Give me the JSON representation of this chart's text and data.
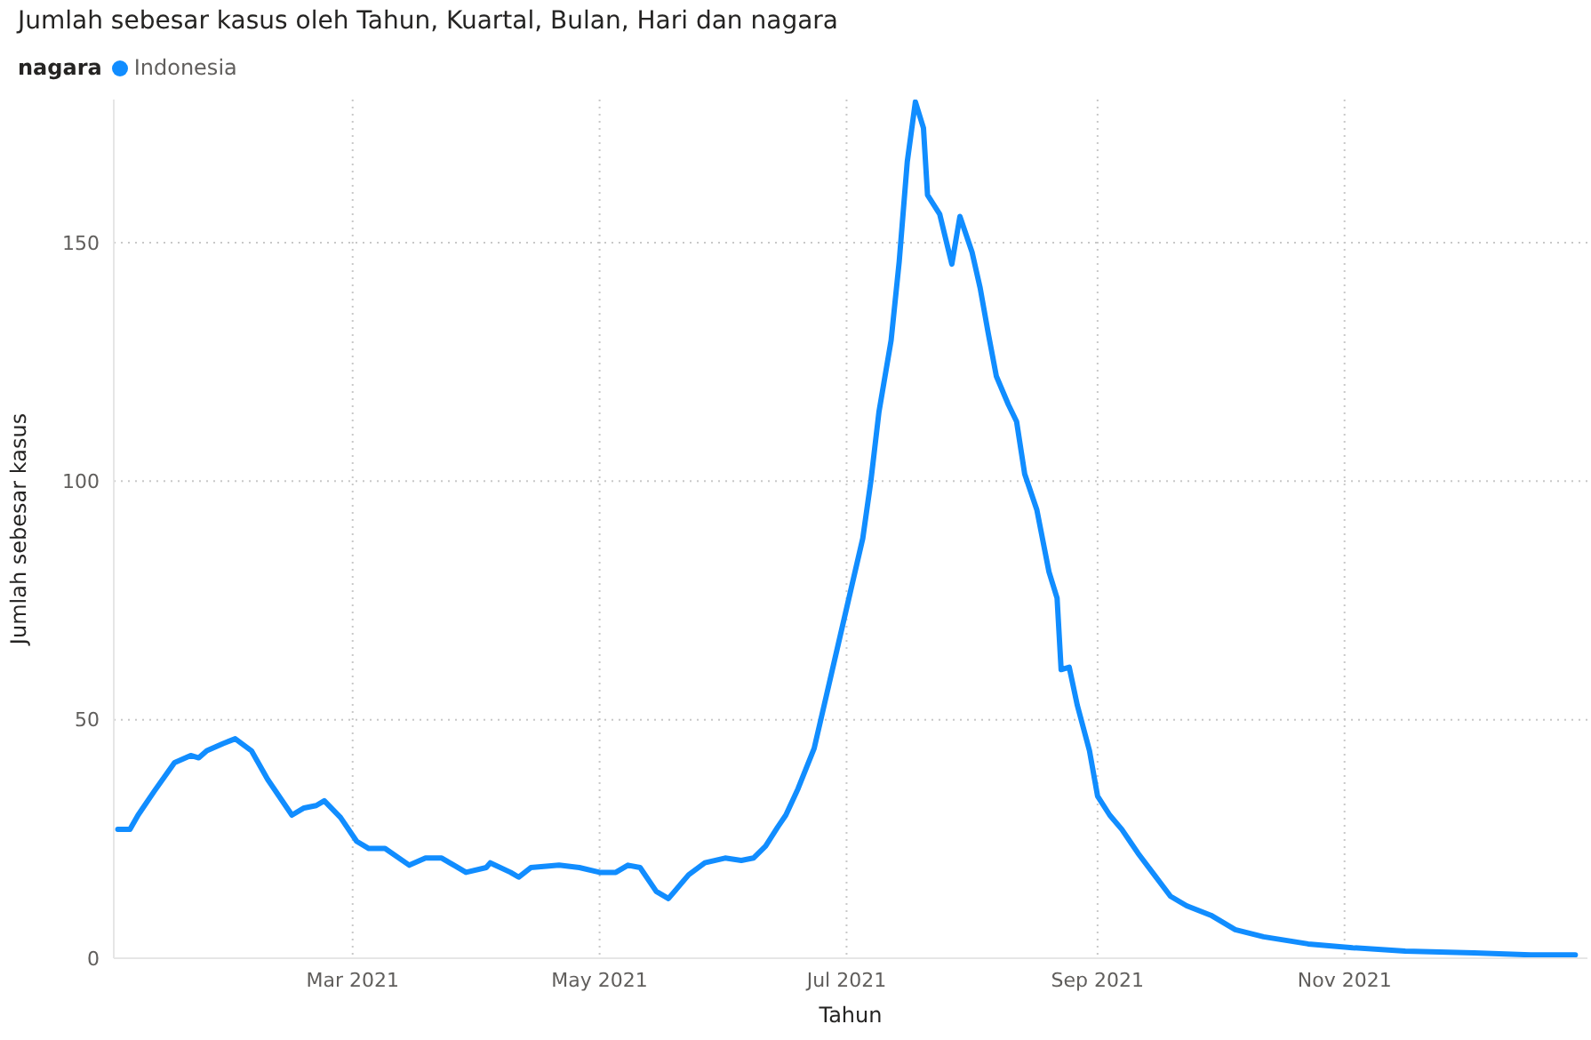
{
  "chart_data": {
    "type": "line",
    "title": "Jumlah sebesar kasus oleh Tahun, Kuartal, Bulan, Hari dan nagara",
    "xlabel": "Tahun",
    "ylabel": "Jumlah sebesar kasus",
    "legend_title": "nagara",
    "legend": "top left",
    "grid": true,
    "marker": "none",
    "xlim": [
      "2021-01-01",
      "2021-12-31"
    ],
    "xticks": [
      {
        "value": "2021-03-01",
        "label": "Mar 2021"
      },
      {
        "value": "2021-05-01",
        "label": "May 2021"
      },
      {
        "value": "2021-07-01",
        "label": "Jul 2021"
      },
      {
        "value": "2021-09-01",
        "label": "Sep 2021"
      },
      {
        "value": "2021-11-01",
        "label": "Nov 2021"
      }
    ],
    "ylim": [
      0,
      180
    ],
    "yticks": [
      0,
      50,
      100,
      150
    ],
    "x": [
      "2021-01-02",
      "2021-01-05",
      "2021-01-07",
      "2021-01-11",
      "2021-01-16",
      "2021-01-20",
      "2021-01-22",
      "2021-01-24",
      "2021-01-28",
      "2021-01-31",
      "2021-02-04",
      "2021-02-08",
      "2021-02-14",
      "2021-02-17",
      "2021-02-20",
      "2021-02-22",
      "2021-02-26",
      "2021-03-02",
      "2021-03-05",
      "2021-03-09",
      "2021-03-15",
      "2021-03-19",
      "2021-03-23",
      "2021-03-29",
      "2021-04-03",
      "2021-04-04",
      "2021-04-09",
      "2021-04-11",
      "2021-04-14",
      "2021-04-21",
      "2021-04-26",
      "2021-05-01",
      "2021-05-05",
      "2021-05-08",
      "2021-05-11",
      "2021-05-15",
      "2021-05-18",
      "2021-05-23",
      "2021-05-27",
      "2021-06-01",
      "2021-06-05",
      "2021-06-08",
      "2021-06-11",
      "2021-06-14",
      "2021-06-16",
      "2021-06-19",
      "2021-06-23",
      "2021-06-26",
      "2021-06-29",
      "2021-07-02",
      "2021-07-05",
      "2021-07-07",
      "2021-07-09",
      "2021-07-12",
      "2021-07-14",
      "2021-07-16",
      "2021-07-18",
      "2021-07-20",
      "2021-07-21",
      "2021-07-24",
      "2021-07-27",
      "2021-07-29",
      "2021-08-01",
      "2021-08-03",
      "2021-08-05",
      "2021-08-07",
      "2021-08-10",
      "2021-08-12",
      "2021-08-14",
      "2021-08-17",
      "2021-08-20",
      "2021-08-22",
      "2021-08-23",
      "2021-08-25",
      "2021-08-27",
      "2021-08-30",
      "2021-09-01",
      "2021-09-04",
      "2021-09-07",
      "2021-09-11",
      "2021-09-15",
      "2021-09-19",
      "2021-09-23",
      "2021-09-29",
      "2021-10-05",
      "2021-10-12",
      "2021-10-23",
      "2021-11-03",
      "2021-11-16",
      "2021-12-03",
      "2021-12-17",
      "2021-12-28"
    ],
    "series": [
      {
        "name": "Indonesia",
        "color": "#118dff",
        "values": [
          27,
          27,
          30,
          35,
          41,
          42.5,
          42,
          43.5,
          45,
          46,
          43.5,
          37.5,
          30,
          31.5,
          32,
          33,
          29.5,
          24.5,
          23,
          23,
          19.5,
          21,
          21,
          18,
          19,
          20,
          18,
          17,
          19,
          19.5,
          19,
          18,
          18,
          19.5,
          19,
          14,
          12.5,
          17.5,
          20,
          21,
          20.5,
          21,
          23.5,
          27.5,
          30,
          35.5,
          44,
          55,
          66,
          77,
          88,
          100,
          114.5,
          129.5,
          146,
          167,
          179.5,
          174,
          160,
          156,
          145.5,
          155.5,
          148,
          140.5,
          131,
          122,
          116,
          112.5,
          101.5,
          94,
          81,
          75.5,
          60.5,
          61,
          53,
          43.5,
          34,
          30,
          27,
          22,
          17.5,
          13,
          11,
          9,
          6,
          4.5,
          3,
          2.2,
          1.5,
          1.1,
          0.7,
          0.7
        ]
      }
    ]
  }
}
